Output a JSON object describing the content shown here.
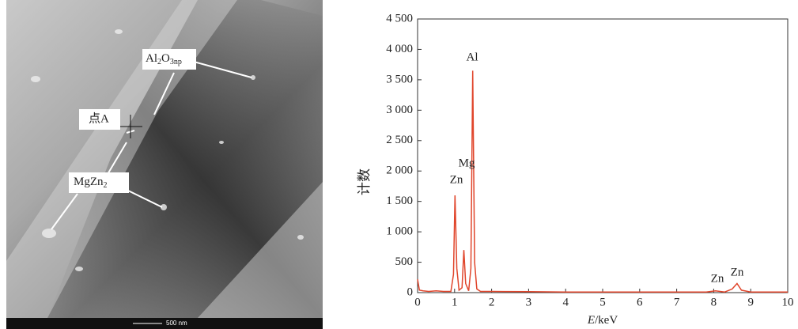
{
  "image": {
    "labels": [
      [
        "Al",
        "2",
        "O",
        "3np"
      ],
      [
        "点A"
      ],
      [
        "MgZn",
        "2"
      ]
    ],
    "scale_bar": "500 nm"
  },
  "chart_data": {
    "type": "line",
    "x_label": [
      "E",
      "/keV"
    ],
    "y_label": "计数",
    "x": [
      0,
      0.05,
      0.15,
      0.3,
      0.5,
      0.7,
      0.9,
      0.97,
      1.01,
      1.06,
      1.12,
      1.2,
      1.25,
      1.3,
      1.38,
      1.44,
      1.49,
      1.54,
      1.6,
      1.7,
      2.0,
      3,
      4,
      5,
      6,
      7,
      7.8,
      8.05,
      8.3,
      8.5,
      8.63,
      8.75,
      9,
      9.5,
      10
    ],
    "values": [
      220,
      40,
      30,
      20,
      30,
      20,
      20,
      300,
      1600,
      400,
      40,
      80,
      700,
      150,
      30,
      400,
      3650,
      500,
      60,
      20,
      20,
      15,
      10,
      10,
      10,
      10,
      10,
      30,
      10,
      60,
      150,
      40,
      10,
      10,
      10
    ],
    "color": "#e0452b",
    "xlim": [
      0,
      10
    ],
    "ylim": [
      0,
      4500
    ],
    "xticks": [
      0,
      1,
      2,
      3,
      4,
      5,
      6,
      7,
      8,
      9,
      10
    ],
    "yticks": [
      0,
      500,
      {
        "value": 1000,
        "label": "1 000"
      },
      {
        "value": 1500,
        "label": "1 500"
      },
      {
        "value": 2000,
        "label": "2 000"
      },
      {
        "value": 2500,
        "label": "2 500"
      },
      {
        "value": 3000,
        "label": "3 000"
      },
      {
        "value": 3500,
        "label": "3 500"
      },
      {
        "value": 4000,
        "label": "4 000"
      },
      {
        "value": 4500,
        "label": "4 500"
      }
    ],
    "annotations": [
      "Al",
      "Mg",
      "Zn",
      "Zn",
      "Zn"
    ]
  }
}
